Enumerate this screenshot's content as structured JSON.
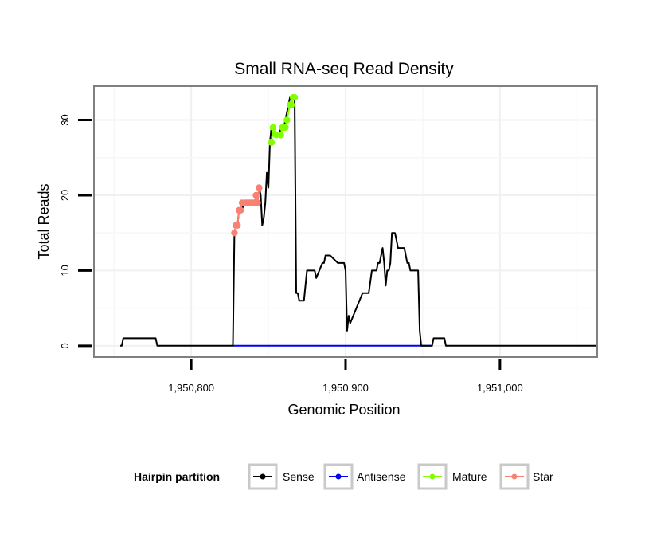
{
  "chart_data": {
    "type": "line",
    "title": "Small RNA-seq Read Density",
    "xlabel": "Genomic Position",
    "ylabel": "Total Reads",
    "xlim": [
      1950737,
      1951063
    ],
    "ylim": [
      -1.5,
      34.5
    ],
    "x_ticks": [
      1950800,
      1950900,
      1951000
    ],
    "x_tick_labels": [
      "1,950,800",
      "1,950,900",
      "1,951,000"
    ],
    "y_ticks": [
      0,
      10,
      20,
      30
    ],
    "y_tick_labels": [
      "0",
      "10",
      "20",
      "30"
    ],
    "grid": true,
    "legend": {
      "title": "Hairpin partition",
      "position": "bottom",
      "entries": [
        {
          "name": "Sense",
          "color": "#000000"
        },
        {
          "name": "Antisense",
          "color": "#0000ff"
        },
        {
          "name": "Mature",
          "color": "#7fff00"
        },
        {
          "name": "Star",
          "color": "#fa8072"
        }
      ]
    },
    "series": [
      {
        "name": "Sense",
        "color": "#000000",
        "x": [
          1950754,
          1950755,
          1950756,
          1950757,
          1950777,
          1950778,
          1950827,
          1950828,
          1950829,
          1950830,
          1950831,
          1950833,
          1950834,
          1950836,
          1950841,
          1950842,
          1950843,
          1950844,
          1950845,
          1950846,
          1950847,
          1950848,
          1950849,
          1950850,
          1950851,
          1950852,
          1950853,
          1950855,
          1950856,
          1950857,
          1950858,
          1950860,
          1950861,
          1950863,
          1950864,
          1950865,
          1950866,
          1950867,
          1950868,
          1950869,
          1950870,
          1950871,
          1950872,
          1950873,
          1950875,
          1950880,
          1950881,
          1950885,
          1950886,
          1950887,
          1950889,
          1950890,
          1950895,
          1950896,
          1950898,
          1950899,
          1950900,
          1950901,
          1950902,
          1950903,
          1950911,
          1950912,
          1950913,
          1950914,
          1950915,
          1950917,
          1950918,
          1950919,
          1950920,
          1950921,
          1950922,
          1950923,
          1950924,
          1950925,
          1950926,
          1950927,
          1950928,
          1950929,
          1950930,
          1950931,
          1950932,
          1950933,
          1950934,
          1950935,
          1950938,
          1950939,
          1950940,
          1950941,
          1950942,
          1950943,
          1950947,
          1950948,
          1950949,
          1950950,
          1950951,
          1950952,
          1950953,
          1950954,
          1950955,
          1950956,
          1950957,
          1950963,
          1950964,
          1950965,
          1950983,
          1950984,
          1950985,
          1950986,
          1951063
        ],
        "y": [
          0,
          0,
          1,
          1,
          1,
          0,
          0,
          15,
          16,
          16,
          18,
          18,
          19,
          19,
          19,
          20,
          19,
          21,
          20,
          16,
          17,
          19,
          23,
          21,
          27,
          29,
          28,
          28,
          28,
          28,
          29,
          29,
          30,
          32,
          33,
          33,
          33,
          33,
          7,
          7,
          6,
          6,
          6,
          6,
          10,
          10,
          9,
          11,
          11,
          12,
          12,
          12,
          11,
          11,
          11,
          11,
          10,
          2,
          4,
          3,
          7,
          7,
          7,
          7,
          7,
          10,
          10,
          10,
          10,
          11,
          11,
          12,
          13,
          11,
          8,
          10,
          10,
          11,
          15,
          15,
          15,
          14,
          13,
          13,
          13,
          12,
          11,
          11,
          10,
          10,
          10,
          2,
          0,
          0,
          0,
          0,
          0,
          0,
          0,
          0,
          1,
          1,
          1,
          0,
          0,
          0,
          0,
          0,
          0
        ]
      },
      {
        "name": "Antisense",
        "color": "#0000ff",
        "x": [
          1950827,
          1950956
        ],
        "y": [
          0,
          0
        ]
      },
      {
        "name": "Mature",
        "color": "#7fff00",
        "x": [
          1950852,
          1950853,
          1950855,
          1950858,
          1950859,
          1950860,
          1950861,
          1950862,
          1950864,
          1950865,
          1950866,
          1950867
        ],
        "y": [
          27,
          29,
          28,
          28,
          29,
          29,
          29,
          30,
          32,
          32,
          33,
          33
        ]
      },
      {
        "name": "Star",
        "color": "#fa8072",
        "x": [
          1950828,
          1950829,
          1950830,
          1950831,
          1950832,
          1950833,
          1950835,
          1950836,
          1950837,
          1950838,
          1950839,
          1950840,
          1950841,
          1950842,
          1950843,
          1950844
        ],
        "y": [
          15,
          16,
          16,
          18,
          18,
          19,
          19,
          19,
          19,
          19,
          19,
          19,
          19,
          20,
          19,
          21
        ]
      }
    ]
  }
}
